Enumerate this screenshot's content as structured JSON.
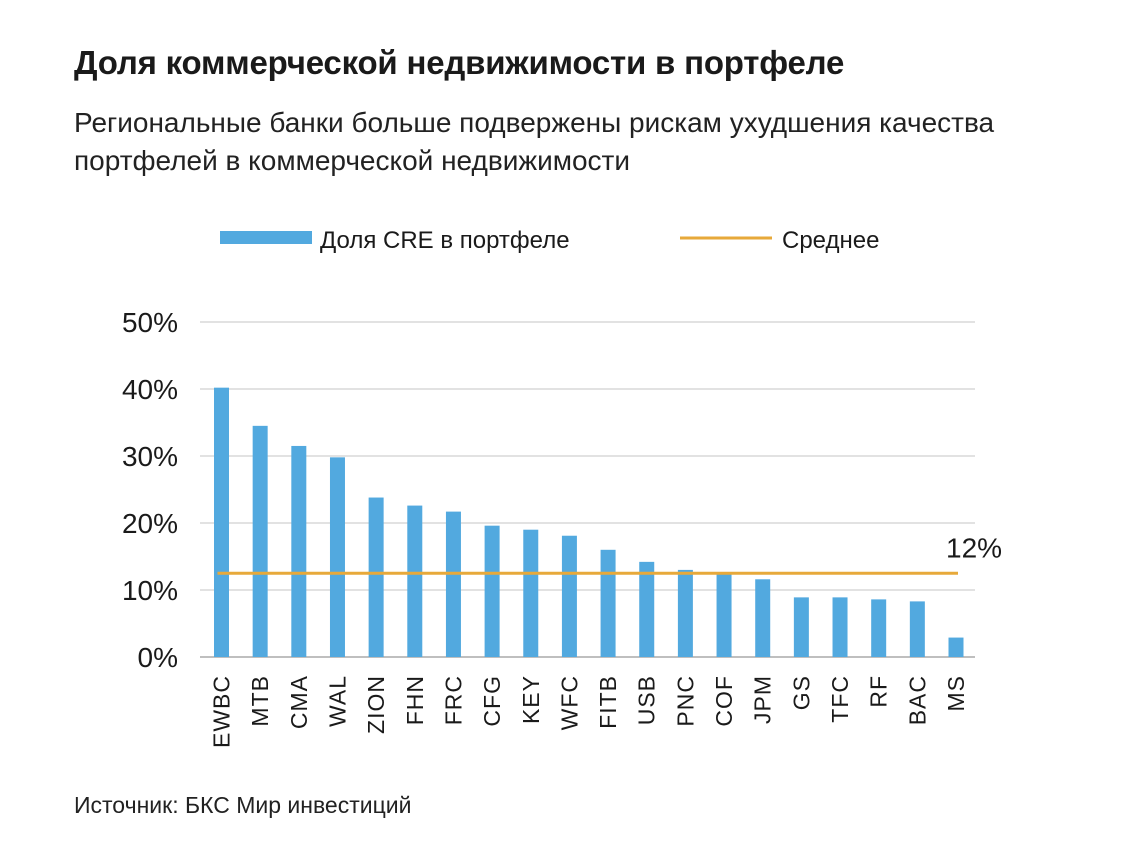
{
  "header": {
    "title": "Доля коммерческой недвижимости в портфеле",
    "subtitle": "Региональные банки больше подвержены рискам ухудшения качества портфелей в коммерческой недвижимости"
  },
  "footer": {
    "source": "Источник: БКС Мир инвестиций"
  },
  "chart_data": {
    "type": "bar",
    "categories": [
      "EWBC",
      "MTB",
      "CMA",
      "WAL",
      "ZION",
      "FHN",
      "FRC",
      "CFG",
      "KEY",
      "WFC",
      "FITB",
      "USB",
      "PNC",
      "COF",
      "JPM",
      "GS",
      "TFC",
      "RF",
      "BAC",
      "MS"
    ],
    "series": [
      {
        "name": "Доля CRE в портфеле",
        "type": "bar",
        "color": "#52a9df",
        "values": [
          40.2,
          34.5,
          31.5,
          29.8,
          23.8,
          22.6,
          21.7,
          19.6,
          19.0,
          18.1,
          16.0,
          14.2,
          13.0,
          12.6,
          11.6,
          8.9,
          8.9,
          8.6,
          8.3,
          2.9
        ]
      },
      {
        "name": "Среднее",
        "type": "line",
        "color": "#e7a93a",
        "value": 12.5
      }
    ],
    "yticks": [
      "0%",
      "10%",
      "20%",
      "30%",
      "40%",
      "50%"
    ],
    "ylim": [
      0,
      50
    ],
    "annotation": "12%",
    "grid": true,
    "legend": "top"
  }
}
